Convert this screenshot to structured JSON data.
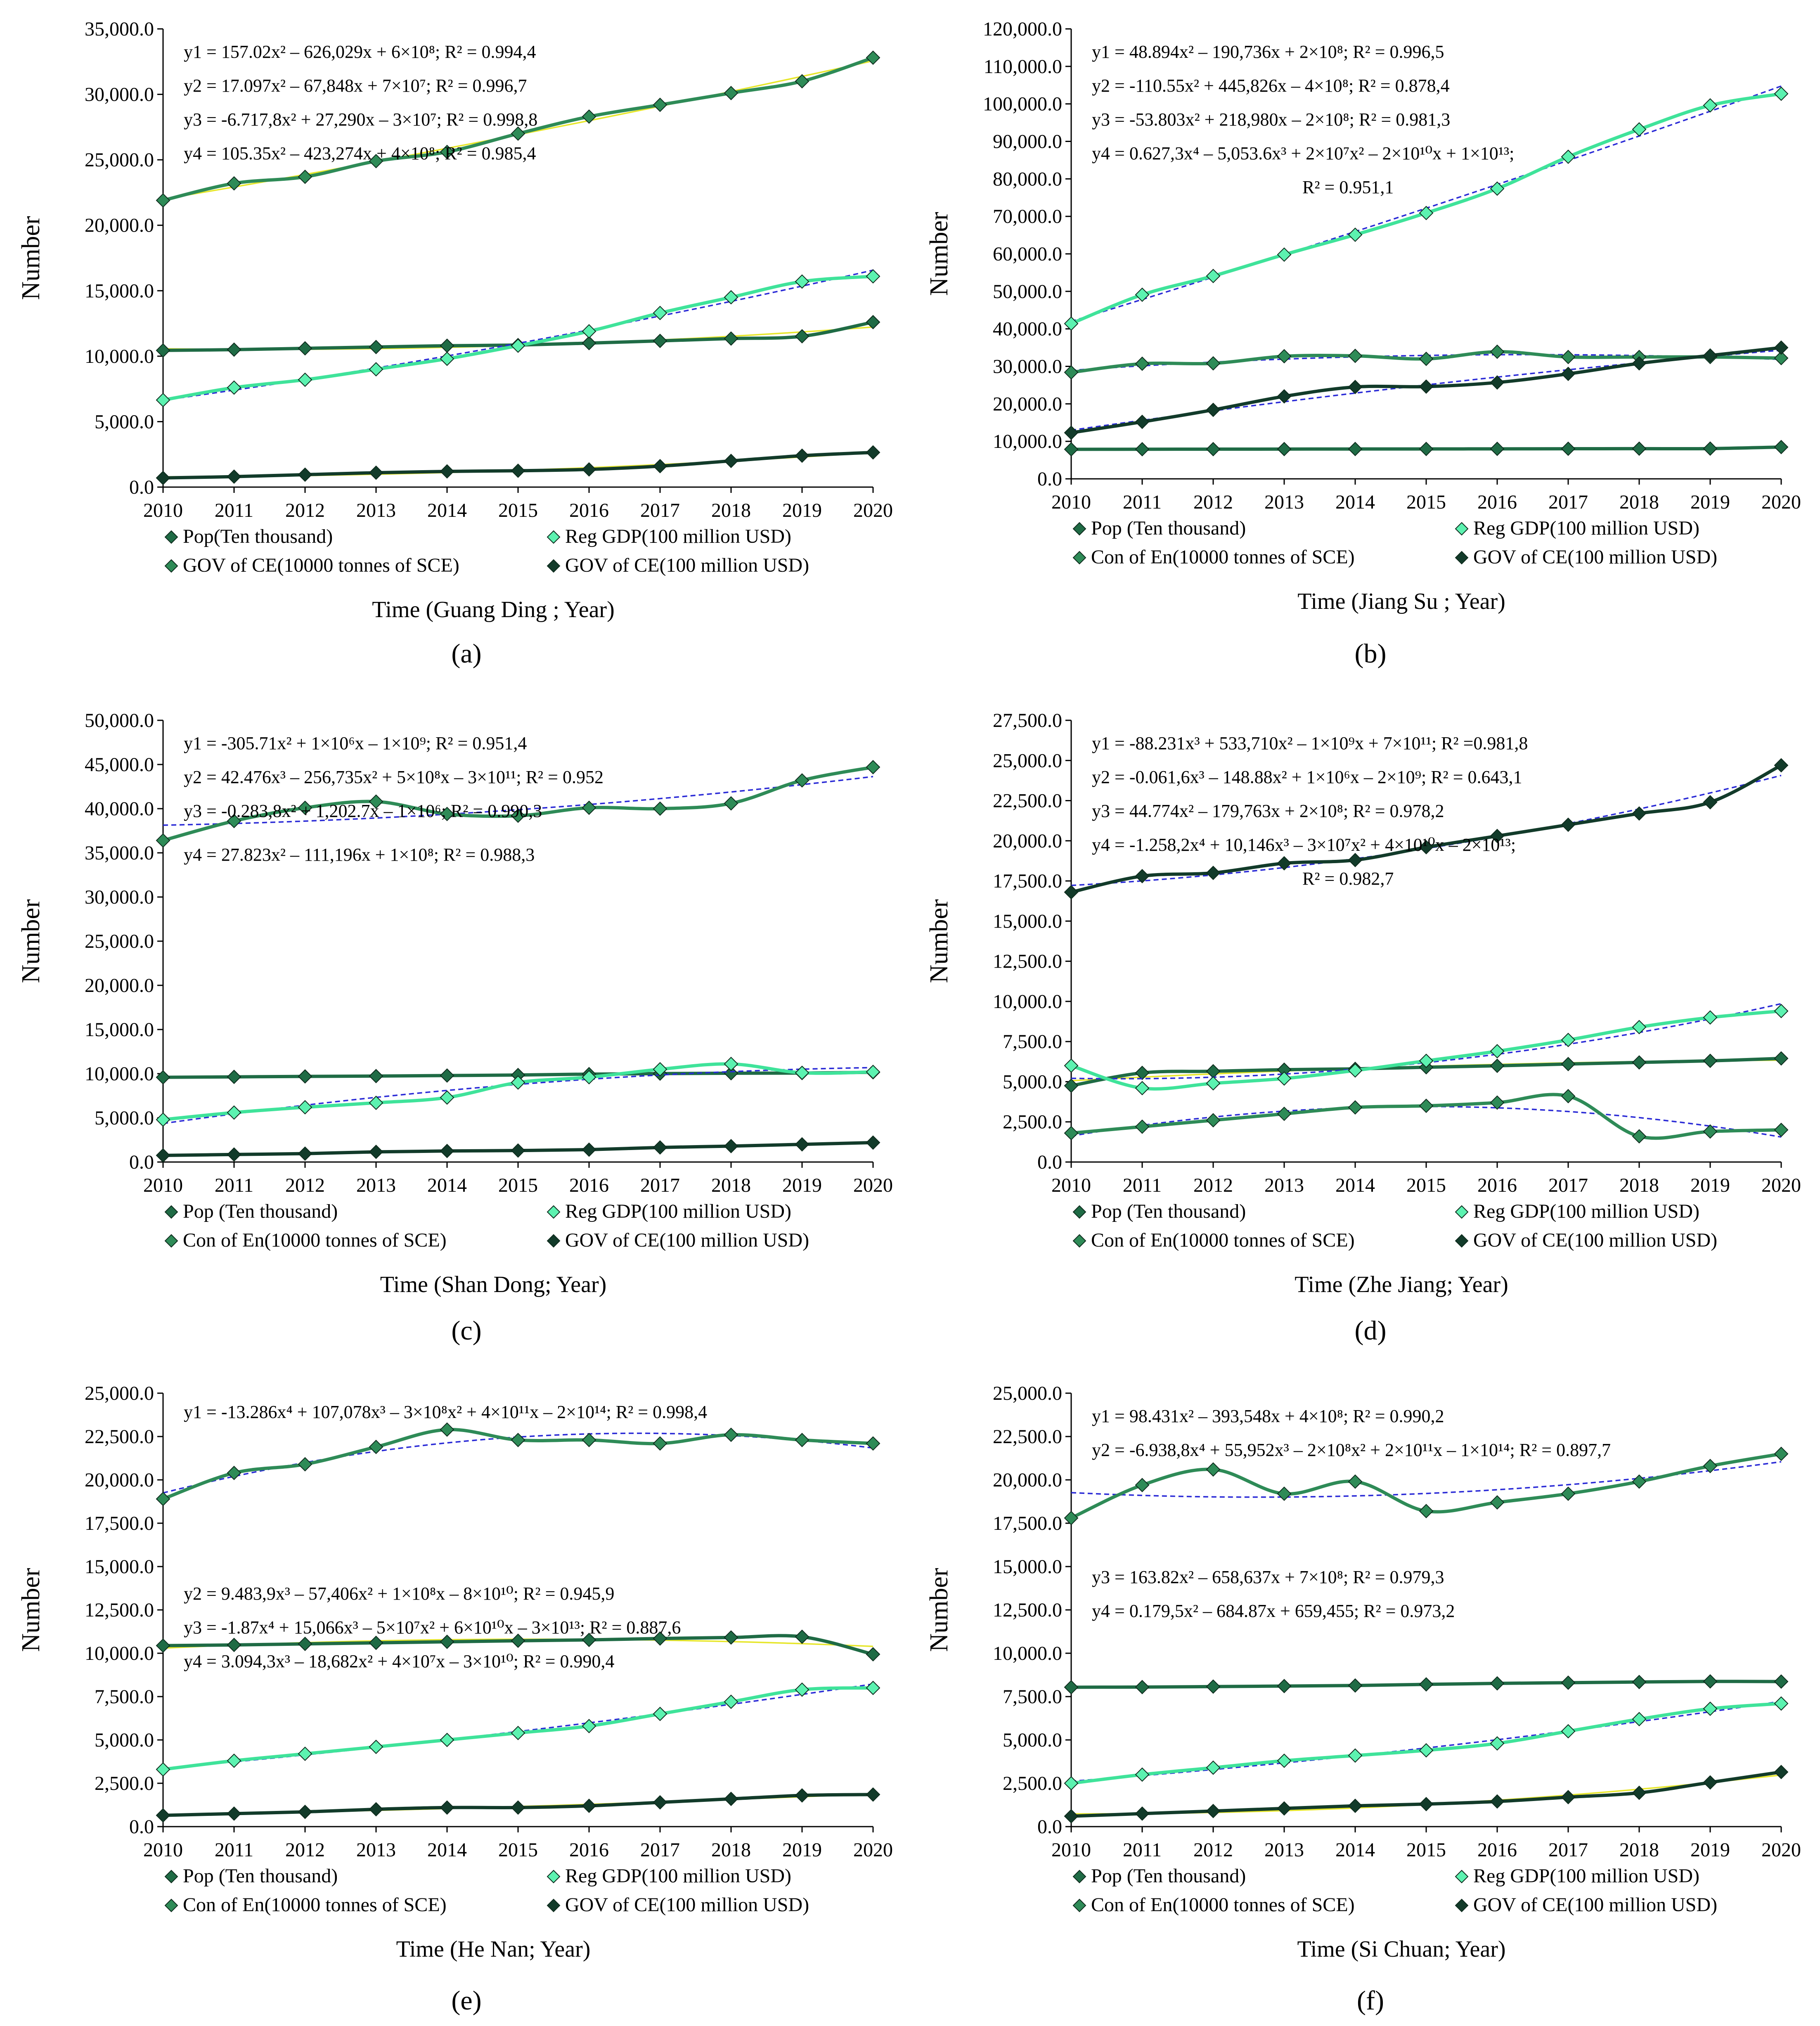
{
  "colors": {
    "pop": "#1f6b45",
    "gdp": "#3fe39a",
    "energy": "#2e8b57",
    "gov": "#123b2a",
    "trend_blue": "#2a2ad6",
    "trend_yellow": "#e6e62a",
    "eq_accent": "#2ecc71"
  },
  "chart_data": [
    {
      "type": "line",
      "panel_label": "(a)",
      "x": [
        2010,
        2011,
        2012,
        2013,
        2014,
        2015,
        2016,
        2017,
        2018,
        2019,
        2020
      ],
      "xlabel": "Time (Guang Ding ; Year)",
      "ylabel": "Number",
      "ylim": [
        0,
        35000
      ],
      "ytick_step": 5000,
      "yticks": [
        "0.0",
        "5,000.0",
        "10,000.0",
        "15,000.0",
        "20,000.0",
        "25,000.0",
        "30,000.0",
        "35,000.0"
      ],
      "legend": [
        "Pop(Ten thousand)",
        "Reg GDP(100 million USD)",
        "GOV of CE(10000 tonnes of SCE)",
        "GOV of CE(100 million USD)"
      ],
      "equations": [
        "y1 = 157.02x² – 626,029x + 6×10⁸; R² = 0.994,4",
        "y2 = 17.097x² – 67,848x + 7×10⁷; R² = 0.996,7",
        "y3 = -6.717,8x² + 27,290x – 3×10⁷; R² = 0.998,8",
        "y4 = 105.35x² – 423,274x + 4×10⁸; R² = 0.985,4"
      ],
      "series": [
        {
          "name": "Pop(Ten thousand)",
          "key": "pop",
          "values": [
            10440,
            10500,
            10600,
            10700,
            10800,
            10850,
            10999,
            11169,
            11346,
            11521,
            12601
          ],
          "trend": "yellow"
        },
        {
          "name": "Reg GDP(100 million USD)",
          "key": "gdp",
          "values": [
            6650,
            7600,
            8200,
            9000,
            9800,
            10800,
            11900,
            13300,
            14500,
            15700,
            16100
          ],
          "trend": "blue"
        },
        {
          "name": "GOV of CE(10000 tonnes of SCE)",
          "key": "energy",
          "values": [
            21900,
            23200,
            23700,
            24900,
            25600,
            27000,
            28300,
            29200,
            30100,
            31000,
            32800
          ],
          "trend": "yellow"
        },
        {
          "name": "GOV of CE(100 million USD)",
          "key": "gov",
          "values": [
            700,
            800,
            950,
            1100,
            1200,
            1250,
            1350,
            1600,
            2000,
            2400,
            2650
          ],
          "trend": "yellow"
        }
      ]
    },
    {
      "type": "line",
      "panel_label": "(b)",
      "x": [
        2010,
        2011,
        2012,
        2013,
        2014,
        2015,
        2016,
        2017,
        2018,
        2019,
        2020
      ],
      "xlabel": "Time (Jiang Su ; Year)",
      "ylabel": "Number",
      "ylim": [
        0,
        120000
      ],
      "ytick_step": 10000,
      "yticks": [
        "0.0",
        "10,000.0",
        "20,000.0",
        "30,000.0",
        "40,000.0",
        "50,000.0",
        "60,000.0",
        "70,000.0",
        "80,000.0",
        "90,000.0",
        "100,000.0",
        "110,000.0",
        "120,000.0"
      ],
      "legend": [
        "Pop (Ten thousand)",
        "Reg GDP(100 million USD)",
        "Con of En(10000 tonnes of SCE)",
        "GOV of CE(100 million USD)"
      ],
      "equations": [
        "y1 = 48.894x² – 190,736x + 2×10⁸; R² = 0.996,5",
        "y2 = -110.55x² + 445,826x – 4×10⁸; R² = 0.878,4",
        "y3 = -53.803x² + 218,980x – 2×10⁸; R² = 0.981,3",
        "y4 = 0.627,3x⁴ – 5,053.6x³ + 2×10⁷x² – 2×10¹⁰x + 1×10¹³;",
        "R² = 0.951,1"
      ],
      "series": [
        {
          "name": "Pop (Ten thousand)",
          "key": "pop",
          "values": [
            7870,
            7900,
            7920,
            7940,
            7960,
            7976,
            7999,
            8029,
            8051,
            8070,
            8477
          ],
          "trend": "yellow"
        },
        {
          "name": "Reg GDP(100 million USD)",
          "key": "gdp",
          "values": [
            41400,
            49100,
            54100,
            59800,
            65100,
            70900,
            77400,
            85900,
            93200,
            99600,
            102700
          ],
          "trend": "blue"
        },
        {
          "name": "Con of En(10000 tonnes of SCE)",
          "key": "energy",
          "values": [
            28400,
            30700,
            30800,
            32700,
            32800,
            32000,
            33900,
            32500,
            32500,
            32500,
            32200
          ],
          "trend": "blue"
        },
        {
          "name": "GOV of CE(100 million USD)",
          "key": "gov",
          "values": [
            12300,
            15200,
            18400,
            22000,
            24500,
            24600,
            25700,
            28000,
            30800,
            32900,
            35000
          ],
          "trend": "blue"
        }
      ]
    },
    {
      "type": "line",
      "panel_label": "(c)",
      "x": [
        2010,
        2011,
        2012,
        2013,
        2014,
        2015,
        2016,
        2017,
        2018,
        2019,
        2020
      ],
      "xlabel": "Time (Shan Dong; Year)",
      "ylabel": "Number",
      "ylim": [
        0,
        50000
      ],
      "ytick_step": 5000,
      "yticks": [
        "0.0",
        "5,000.0",
        "10,000.0",
        "15,000.0",
        "20,000.0",
        "25,000.0",
        "30,000.0",
        "35,000.0",
        "40,000.0",
        "45,000.0",
        "50,000.0"
      ],
      "legend": [
        "Pop (Ten thousand)",
        "Reg GDP(100 million USD)",
        "Con of En(10000 tonnes of SCE)",
        "GOV of CE(100 million USD)"
      ],
      "equations": [
        "y1 = -305.71x² + 1×10⁶x – 1×10⁹; R² = 0.951,4",
        "y2 = 42.476x³ – 256,735x² + 5×10⁸x – 3×10¹¹; R² = 0.952",
        "y3 = -0.283,8x² + 1,202.7x – 1×10⁶; R² = 0.990,3",
        "y4 = 27.823x² – 111,196x + 1×10⁸; R² = 0.988,3"
      ],
      "series": [
        {
          "name": "Pop (Ten thousand)",
          "key": "pop",
          "values": [
            9590,
            9640,
            9690,
            9730,
            9790,
            9850,
            9950,
            10010,
            10050,
            10070,
            10160
          ],
          "trend": "yellow"
        },
        {
          "name": "Reg GDP(100 million USD)",
          "key": "gdp",
          "values": [
            4800,
            5600,
            6200,
            6700,
            7300,
            9000,
            9600,
            10500,
            11100,
            10100,
            10200
          ],
          "trend": "blue"
        },
        {
          "name": "Con of En(10000 tonnes of SCE)",
          "key": "energy",
          "values": [
            36400,
            38600,
            40100,
            40800,
            39400,
            39200,
            40100,
            40000,
            40600,
            43200,
            44700
          ],
          "trend": "blue"
        },
        {
          "name": "GOV of CE(100 million USD)",
          "key": "gov",
          "values": [
            750,
            850,
            950,
            1150,
            1250,
            1300,
            1400,
            1650,
            1800,
            2000,
            2200
          ],
          "trend": "yellow"
        }
      ]
    },
    {
      "type": "line",
      "panel_label": "(d)",
      "x": [
        2010,
        2011,
        2012,
        2013,
        2014,
        2015,
        2016,
        2017,
        2018,
        2019,
        2020
      ],
      "xlabel": "Time (Zhe Jiang; Year)",
      "ylabel": "Number",
      "ylim": [
        0,
        27500
      ],
      "ytick_step": 2500,
      "yticks": [
        "0.0",
        "2,500.0",
        "5,000.0",
        "7,500.0",
        "10,000.0",
        "12,500.0",
        "15,000.0",
        "17,500.0",
        "20,000.0",
        "22,500.0",
        "25,000.0",
        "27,500.0"
      ],
      "legend": [
        "Pop (Ten thousand)",
        "Reg GDP(100 million USD)",
        "Con of En(10000 tonnes of SCE)",
        "GOV of CE(100 million USD)"
      ],
      "equations": [
        "y1 = -88.231x³ + 533,710x² – 1×10⁹x + 7×10¹¹; R² =0.981,8",
        "y2 = -0.061,6x³ – 148.88x² + 1×10⁶x – 2×10⁹; R² = 0.643,1",
        "y3 = 44.774x² – 179,763x + 2×10⁸; R² = 0.978,2",
        "y4 = -1.258,2x⁴ + 10,146x³ – 3×10⁷x² + 4×10¹⁰x – 2×10¹³;",
        "R² = 0.982,7"
      ],
      "series": [
        {
          "name": "Pop (Ten thousand)",
          "key": "pop",
          "values": [
            4750,
            5550,
            5650,
            5750,
            5800,
            5900,
            5990,
            6100,
            6200,
            6300,
            6450
          ],
          "trend": "yellow"
        },
        {
          "name": "Reg GDP(100 million USD)",
          "key": "gdp",
          "values": [
            6000,
            4600,
            4900,
            5200,
            5700,
            6300,
            6900,
            7600,
            8400,
            9000,
            9400
          ],
          "trend": "blue"
        },
        {
          "name": "Con of En(10000 tonnes of SCE)",
          "key": "energy",
          "values": [
            1800,
            2200,
            2600,
            3000,
            3400,
            3500,
            3700,
            4100,
            1600,
            1900,
            2000
          ],
          "trend": "blue"
        },
        {
          "name": "GOV of CE(100 million USD)",
          "key": "gov",
          "values": [
            16800,
            17800,
            18000,
            18600,
            18800,
            19600,
            20300,
            21000,
            21700,
            22400,
            24700
          ],
          "trend": "blue"
        }
      ]
    },
    {
      "type": "line",
      "panel_label": "(e)",
      "x": [
        2010,
        2011,
        2012,
        2013,
        2014,
        2015,
        2016,
        2017,
        2018,
        2019,
        2020
      ],
      "xlabel": "Time (He Nan; Year)",
      "ylabel": "Number",
      "ylim": [
        0,
        25000
      ],
      "ytick_step": 2500,
      "yticks": [
        "0.0",
        "2,500.0",
        "5,000.0",
        "7,500.0",
        "10,000.0",
        "12,500.0",
        "15,000.0",
        "17,500.0",
        "20,000.0",
        "22,500.0",
        "25,000.0"
      ],
      "legend": [
        "Pop (Ten thousand)",
        "Reg GDP(100 million USD)",
        "Con of En(10000 tonnes of SCE)",
        "GOV of CE(100 million USD)"
      ],
      "equations": [
        "y1 = -13.286x⁴ + 107,078x³ – 3×10⁸x² + 4×10¹¹x – 2×10¹⁴; R² = 0.998,4",
        "y2 = 9.483,9x³ – 57,406x² + 1×10⁸x – 8×10¹⁰; R² = 0.945,9",
        "y3 = -1.87x⁴ + 15,066x³ – 5×10⁷x² + 6×10¹⁰x – 3×10¹³; R² = 0.887,6",
        "y4 = 3.094,3x³ – 18,682x² + 4×10⁷x – 3×10¹⁰; R² = 0.990,4"
      ],
      "series": [
        {
          "name": "Pop (Ten thousand)",
          "key": "pop",
          "values": [
            10440,
            10480,
            10540,
            10600,
            10660,
            10720,
            10770,
            10850,
            10910,
            10950,
            9940
          ],
          "trend": "yellow"
        },
        {
          "name": "Reg GDP(100 million USD)",
          "key": "gdp",
          "values": [
            3300,
            3800,
            4200,
            4600,
            5000,
            5400,
            5800,
            6500,
            7200,
            7900,
            8000
          ],
          "trend": "blue"
        },
        {
          "name": "Con of En(10000 tonnes of SCE)",
          "key": "energy",
          "values": [
            18900,
            20400,
            20900,
            21900,
            22900,
            22300,
            22300,
            22100,
            22600,
            22300,
            22100
          ],
          "trend": "blue"
        },
        {
          "name": "GOV of CE(100 million USD)",
          "key": "gov",
          "values": [
            650,
            750,
            850,
            1000,
            1100,
            1100,
            1200,
            1400,
            1600,
            1800,
            1850
          ],
          "trend": "yellow"
        }
      ]
    },
    {
      "type": "line",
      "panel_label": "(f)",
      "x": [
        2010,
        2011,
        2012,
        2013,
        2014,
        2015,
        2016,
        2017,
        2018,
        2019,
        2020
      ],
      "xlabel": "Time (Si Chuan; Year)",
      "ylabel": "Number",
      "ylim": [
        0,
        25000
      ],
      "ytick_step": 2500,
      "yticks": [
        "0.0",
        "2,500.0",
        "5,000.0",
        "7,500.0",
        "10,000.0",
        "12,500.0",
        "15,000.0",
        "17,500.0",
        "20,000.0",
        "22,500.0",
        "25,000.0"
      ],
      "legend": [
        "Pop (Ten thousand)",
        "Reg GDP(100 million USD)",
        "Con of En(10000 tonnes of SCE)",
        "GOV of CE(100 million USD)"
      ],
      "equations": [
        "y1 = 98.431x² – 393,548x + 4×10⁸; R² = 0.990,2",
        "y2 = -6.938,8x⁴ + 55,952x³ – 2×10⁸x² + 2×10¹¹x – 1×10¹⁴; R² = 0.897,7",
        "y3 = 163.82x² – 658,637x + 7×10⁸; R² = 0.979,3",
        "y4 = 0.179,5x² – 684.87x + 659,455; R² = 0.973,2"
      ],
      "series": [
        {
          "name": "Pop (Ten thousand)",
          "key": "pop",
          "values": [
            8040,
            8050,
            8076,
            8107,
            8140,
            8204,
            8262,
            8302,
            8341,
            8375,
            8367
          ],
          "trend": "yellow"
        },
        {
          "name": "Reg GDP(100 million USD)",
          "key": "gdp",
          "values": [
            2500,
            3000,
            3400,
            3800,
            4100,
            4400,
            4800,
            5500,
            6200,
            6800,
            7100
          ],
          "trend": "blue"
        },
        {
          "name": "Con of En(10000 tonnes of SCE)",
          "key": "energy",
          "values": [
            17800,
            19700,
            20600,
            19200,
            19900,
            18200,
            18700,
            19200,
            19900,
            20800,
            21500
          ],
          "trend": "blue"
        },
        {
          "name": "GOV of CE(100 million USD)",
          "key": "gov",
          "values": [
            600,
            750,
            900,
            1050,
            1200,
            1300,
            1450,
            1700,
            1950,
            2550,
            3150
          ],
          "trend": "yellow"
        }
      ]
    }
  ]
}
